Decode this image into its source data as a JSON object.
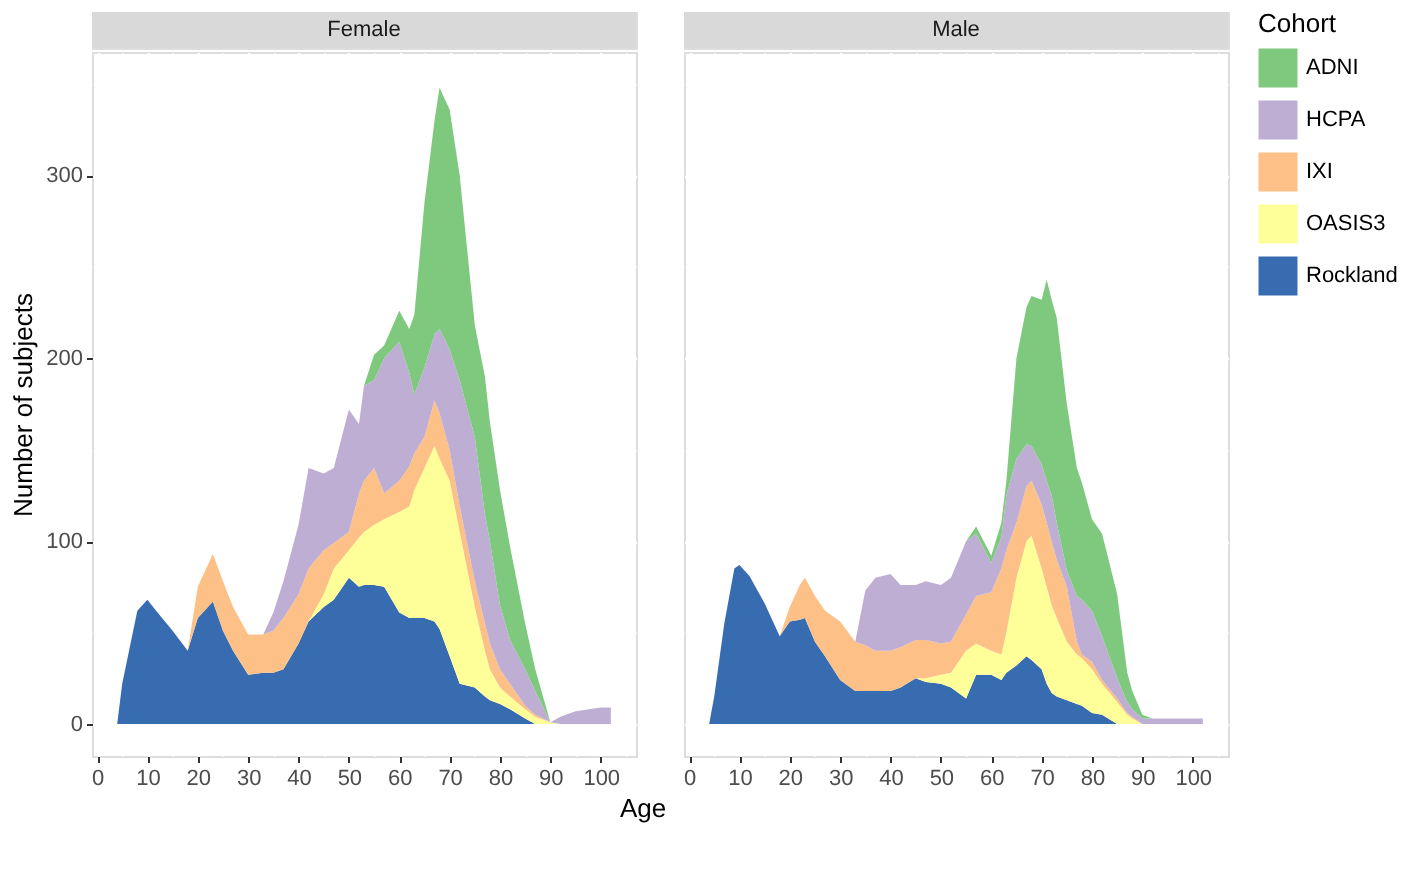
{
  "chart_data": [
    {
      "type": "area",
      "title": "Female",
      "xlabel": "Age",
      "ylabel": "Number of subjects",
      "stacked": true,
      "grid": true,
      "legend": "right",
      "xlim": [
        -1,
        107
      ],
      "ylim": [
        -17.5,
        367.5
      ],
      "xticks": [
        0,
        {
          "value": 5,
          "label": null
        },
        10,
        {
          "value": 15,
          "label": null
        },
        20,
        {
          "value": 25,
          "label": null
        },
        30,
        {
          "value": 35,
          "label": null
        },
        40,
        {
          "value": 45,
          "label": null
        },
        50,
        {
          "value": 55,
          "label": null
        },
        60,
        {
          "value": 65,
          "label": null
        },
        70,
        {
          "value": 75,
          "label": null
        },
        80,
        {
          "value": 85,
          "label": null
        },
        90,
        {
          "value": 95,
          "label": null
        },
        100,
        {
          "value": 105,
          "label": null
        }
      ],
      "yticks": [
        0,
        {
          "value": 50,
          "label": null
        },
        100,
        {
          "value": 150,
          "label": null
        },
        200,
        {
          "value": 250,
          "label": null
        },
        300,
        {
          "value": 350,
          "label": null
        }
      ],
      "x": [
        4,
        5,
        8,
        10,
        12,
        15,
        18,
        20,
        23,
        25,
        27,
        30,
        33,
        35,
        37,
        40,
        42,
        45,
        47,
        50,
        52,
        53,
        55,
        57,
        60,
        62,
        63,
        65,
        67,
        68,
        70,
        72,
        75,
        77,
        78,
        80,
        82,
        85,
        87,
        90,
        92,
        95,
        100,
        102
      ],
      "series": [
        {
          "name": "Rockland",
          "color": "#386cb0",
          "values": [
            0,
            22,
            62,
            68,
            61,
            51,
            40,
            58,
            67,
            51,
            40,
            27,
            28,
            28,
            30,
            44,
            56,
            64,
            68,
            80,
            75,
            76,
            76,
            75,
            61,
            58,
            58,
            58,
            56,
            52,
            37,
            22,
            20,
            15,
            13,
            11,
            8,
            3,
            0,
            0,
            0,
            0,
            0,
            0
          ]
        },
        {
          "name": "OASIS3",
          "color": "#ffff99",
          "values": [
            0,
            0,
            0,
            0,
            0,
            0,
            0,
            0,
            0,
            0,
            0,
            0,
            0,
            0,
            0,
            0,
            0,
            7,
            17,
            15,
            27,
            29,
            33,
            37,
            55,
            61,
            70,
            82,
            96,
            93,
            96,
            83,
            44,
            25,
            17,
            9,
            7,
            5,
            4,
            1,
            0,
            0,
            0,
            0
          ]
        },
        {
          "name": "IXI",
          "color": "#fdc086",
          "values": [
            0,
            0,
            0,
            0,
            0,
            0,
            0,
            17,
            26,
            27,
            24,
            22,
            21,
            23,
            28,
            27,
            29,
            24,
            14,
            10,
            24,
            28,
            31,
            14,
            17,
            22,
            20,
            17,
            25,
            25,
            17,
            14,
            14,
            15,
            14,
            10,
            7,
            2,
            1,
            0,
            0,
            0,
            0,
            0
          ]
        },
        {
          "name": "HCPA",
          "color": "#beaed4",
          "values": [
            0,
            0,
            0,
            0,
            0,
            0,
            0,
            0,
            0,
            0,
            0,
            0,
            0,
            10,
            20,
            38,
            55,
            42,
            41,
            67,
            38,
            52,
            48,
            74,
            76,
            51,
            32,
            38,
            36,
            46,
            55,
            69,
            79,
            60,
            56,
            35,
            24,
            20,
            13,
            0,
            4,
            7,
            9,
            9
          ]
        },
        {
          "name": "ADNI",
          "color": "#7fc97f",
          "values": [
            0,
            0,
            0,
            0,
            0,
            0,
            0,
            0,
            0,
            0,
            0,
            0,
            0,
            0,
            0,
            0,
            0,
            0,
            0,
            0,
            0,
            0,
            14,
            7,
            17,
            24,
            44,
            90,
            117,
            132,
            131,
            112,
            61,
            75,
            65,
            63,
            51,
            25,
            12,
            0,
            0,
            0,
            0,
            0
          ]
        }
      ]
    },
    {
      "type": "area",
      "title": "Male",
      "stacked": true,
      "grid": true,
      "legend": "right",
      "legend_title": "Cohort",
      "tick_labels": "x",
      "xlim": [
        -1,
        107
      ],
      "ylim": [
        -17.5,
        367.5
      ],
      "xticks": [
        0,
        {
          "value": 5,
          "label": null
        },
        10,
        {
          "value": 15,
          "label": null
        },
        20,
        {
          "value": 25,
          "label": null
        },
        30,
        {
          "value": 35,
          "label": null
        },
        40,
        {
          "value": 45,
          "label": null
        },
        50,
        {
          "value": 55,
          "label": null
        },
        60,
        {
          "value": 65,
          "label": null
        },
        70,
        {
          "value": 75,
          "label": null
        },
        80,
        {
          "value": 85,
          "label": null
        },
        90,
        {
          "value": 95,
          "label": null
        },
        100,
        {
          "value": 105,
          "label": null
        }
      ],
      "yticks": [
        0,
        {
          "value": 50,
          "label": null
        },
        100,
        {
          "value": 150,
          "label": null
        },
        200,
        {
          "value": 250,
          "label": null
        },
        300,
        {
          "value": 350,
          "label": null
        }
      ],
      "x": [
        4,
        5,
        7,
        9,
        10,
        12,
        15,
        17,
        18,
        20,
        22,
        23,
        25,
        27,
        30,
        33,
        35,
        37,
        40,
        42,
        45,
        47,
        50,
        52,
        55,
        57,
        60,
        62,
        63,
        65,
        67,
        68,
        70,
        71,
        72,
        73,
        75,
        77,
        78,
        80,
        82,
        85,
        87,
        88,
        90,
        92,
        95,
        100,
        102
      ],
      "series": [
        {
          "name": "Rockland",
          "color": "#386cb0",
          "values": [
            0,
            15,
            55,
            85,
            87,
            81,
            66,
            54,
            48,
            56,
            57,
            58,
            45,
            37,
            24,
            18,
            18,
            18,
            18,
            20,
            25,
            23,
            22,
            20,
            14,
            27,
            27,
            24,
            28,
            32,
            37,
            35,
            30,
            22,
            17,
            15,
            13,
            11,
            10,
            6,
            5,
            0,
            0,
            0,
            0,
            0,
            0,
            0,
            0
          ]
        },
        {
          "name": "OASIS3",
          "color": "#ffff99",
          "values": [
            0,
            0,
            0,
            0,
            0,
            0,
            0,
            0,
            0,
            0,
            0,
            0,
            0,
            0,
            0,
            0,
            0,
            0,
            0,
            0,
            0,
            2,
            5,
            8,
            26,
            17,
            13,
            14,
            22,
            48,
            63,
            68,
            55,
            53,
            48,
            43,
            32,
            27,
            26,
            24,
            17,
            12,
            5,
            3,
            0,
            0,
            0,
            0,
            0
          ]
        },
        {
          "name": "IXI",
          "color": "#fdc086",
          "values": [
            0,
            0,
            0,
            0,
            0,
            0,
            0,
            0,
            0,
            8,
            19,
            22,
            25,
            25,
            32,
            27,
            25,
            22,
            22,
            22,
            21,
            21,
            17,
            17,
            20,
            26,
            32,
            47,
            45,
            30,
            30,
            30,
            35,
            35,
            35,
            32,
            30,
            7,
            2,
            4,
            2,
            2,
            1,
            1,
            0,
            0,
            0,
            0,
            0
          ]
        },
        {
          "name": "HCPA",
          "color": "#beaed4",
          "values": [
            0,
            0,
            0,
            0,
            0,
            0,
            0,
            0,
            0,
            0,
            0,
            0,
            0,
            0,
            0,
            0,
            30,
            40,
            42,
            34,
            30,
            32,
            32,
            35,
            40,
            34,
            16,
            17,
            30,
            35,
            23,
            19,
            22,
            23,
            25,
            20,
            9,
            25,
            30,
            28,
            24,
            11,
            6,
            4,
            3,
            3,
            3,
            3,
            3
          ]
        },
        {
          "name": "ADNI",
          "color": "#7fc97f",
          "values": [
            0,
            0,
            0,
            0,
            0,
            0,
            0,
            0,
            0,
            0,
            0,
            0,
            0,
            0,
            0,
            0,
            0,
            0,
            0,
            0,
            0,
            0,
            0,
            0,
            0,
            4,
            4,
            8,
            8,
            55,
            75,
            82,
            90,
            110,
            107,
            112,
            91,
            70,
            64,
            50,
            56,
            46,
            16,
            10,
            2,
            0,
            0,
            0,
            0
          ]
        }
      ]
    }
  ]
}
